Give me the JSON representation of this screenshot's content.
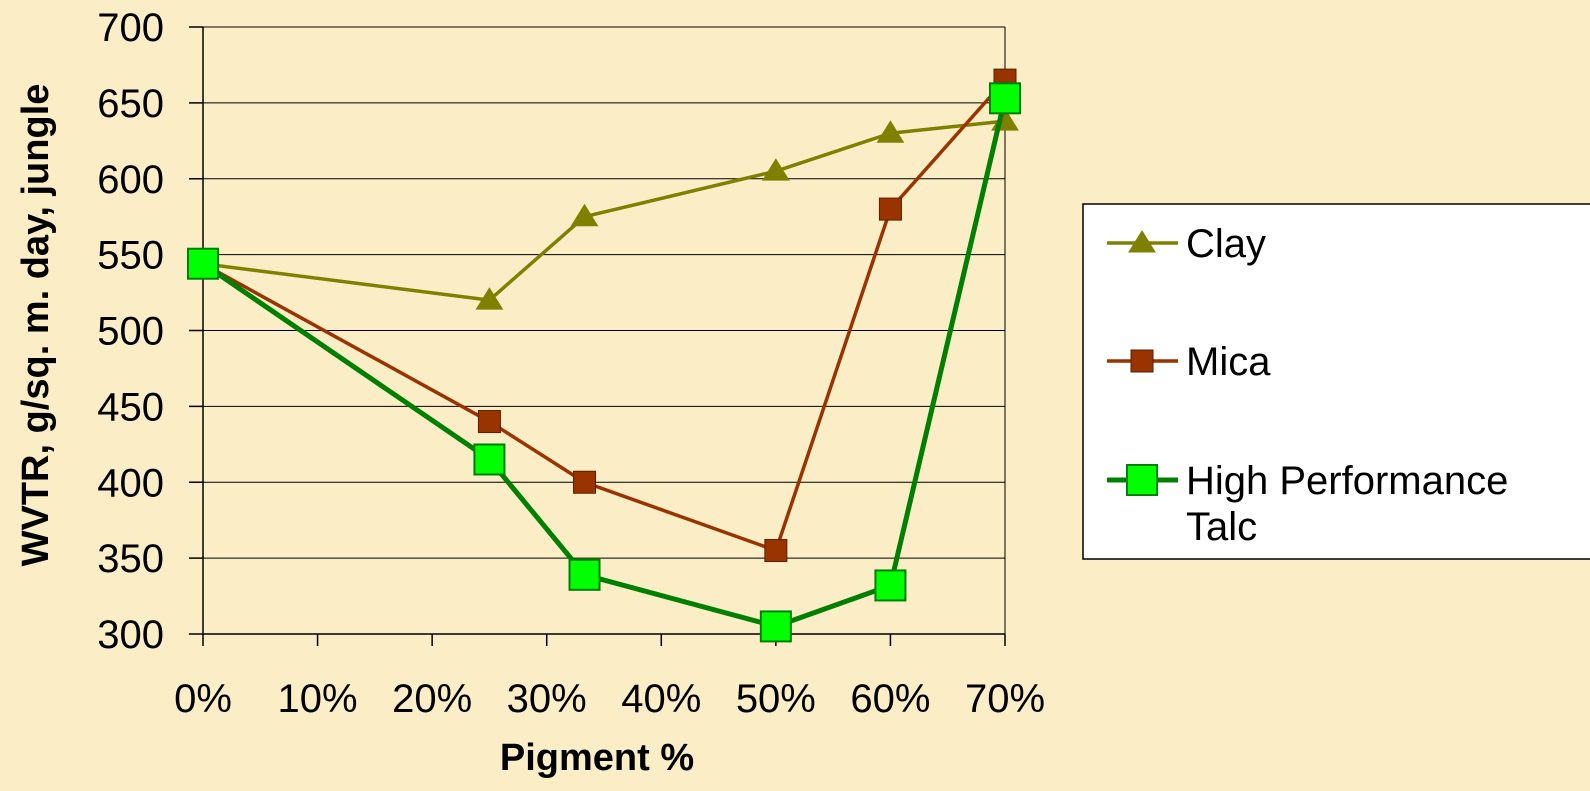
{
  "chart_data": {
    "type": "line",
    "xlabel": "Pigment %",
    "ylabel": "WVTR, g/sq. m. day, jungle",
    "x_ticks": [
      "0%",
      "10%",
      "20%",
      "30%",
      "40%",
      "50%",
      "60%",
      "70%"
    ],
    "x_tick_values": [
      0,
      10,
      20,
      30,
      40,
      50,
      60,
      70
    ],
    "xlim": [
      0,
      70
    ],
    "y_ticks": [
      300,
      350,
      400,
      450,
      500,
      550,
      600,
      650,
      700
    ],
    "ylim": [
      300,
      700
    ],
    "grid": "horizontal",
    "legend_position": "right",
    "series": [
      {
        "name": "Clay",
        "color": "#808000",
        "marker": "triangle",
        "x": [
          0,
          25,
          33.3,
          50,
          60,
          70
        ],
        "y": [
          544,
          520,
          575,
          605,
          630,
          638
        ]
      },
      {
        "name": "Mica",
        "color": "#993300",
        "marker": "square",
        "x": [
          0,
          25,
          33.3,
          50,
          60,
          70
        ],
        "y": [
          544,
          440,
          400,
          355,
          580,
          665
        ]
      },
      {
        "name": "High Performance Talc",
        "name_lines": [
          "High Performance",
          "Talc"
        ],
        "color": "#008000",
        "marker_fill": "#00FF00",
        "marker": "square",
        "x": [
          0,
          25,
          33.3,
          50,
          60,
          70
        ],
        "y": [
          544,
          415,
          339,
          305,
          332,
          653
        ]
      }
    ]
  }
}
